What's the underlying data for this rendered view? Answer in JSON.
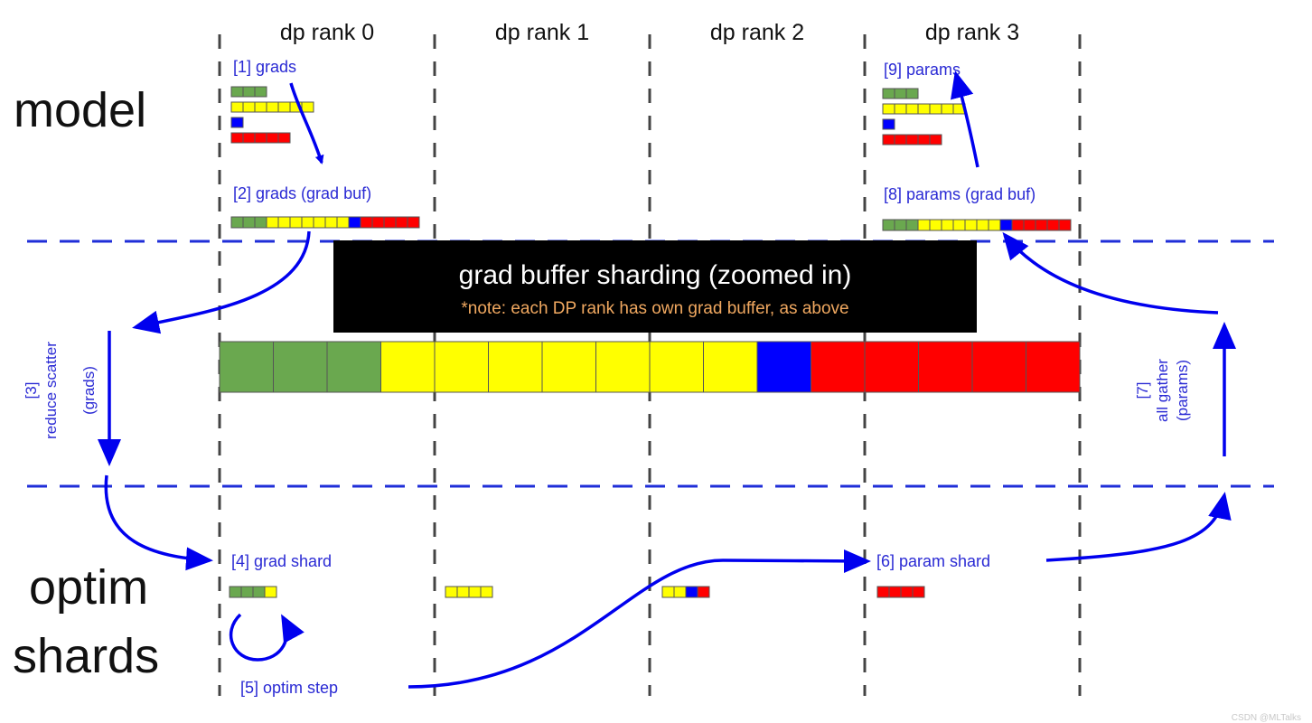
{
  "columns": [
    {
      "id": "rank0",
      "label": "dp rank 0"
    },
    {
      "id": "rank1",
      "label": "dp rank 1"
    },
    {
      "id": "rank2",
      "label": "dp rank 2"
    },
    {
      "id": "rank3",
      "label": "dp rank 3"
    }
  ],
  "rows": {
    "model": "model",
    "optim_line1": "optim",
    "optim_line2": "shards"
  },
  "labels": {
    "step1": "[1] grads",
    "step2": "[2] grads (grad buf)",
    "step3_line1": "[3]",
    "step3_line2": "reduce scatter",
    "step3_line3": "(grads)",
    "step4": "[4] grad shard",
    "step5": "[5] optim step",
    "step6": "[6] param shard",
    "step7_line1": "[7]",
    "step7_line2": "all gather",
    "step7_line3": "(params)",
    "step8": "[8] params (grad buf)",
    "step9": "[9] params"
  },
  "banner": {
    "title": "grad buffer sharding (zoomed in)",
    "note": "*note: each DP rank has own grad buffer, as above"
  },
  "colors": {
    "green": "#6aa84f",
    "yellow": "#ffff00",
    "blue": "#0000ff",
    "red": "#ff0000",
    "label_blue": "#2a2ad4",
    "arrow_blue": "#0000ee",
    "note_orange": "#f0a860"
  },
  "buffer_cells": [
    "green",
    "green",
    "green",
    "yellow",
    "yellow",
    "yellow",
    "yellow",
    "yellow",
    "yellow",
    "yellow",
    "blue",
    "red",
    "red",
    "red",
    "red",
    "red"
  ],
  "params_by_tensor": [
    {
      "color": "green",
      "count": 3
    },
    {
      "color": "yellow",
      "count": 7
    },
    {
      "color": "blue",
      "count": 1
    },
    {
      "color": "red",
      "count": 5
    }
  ],
  "watermark": "CSDN @MLTalks"
}
